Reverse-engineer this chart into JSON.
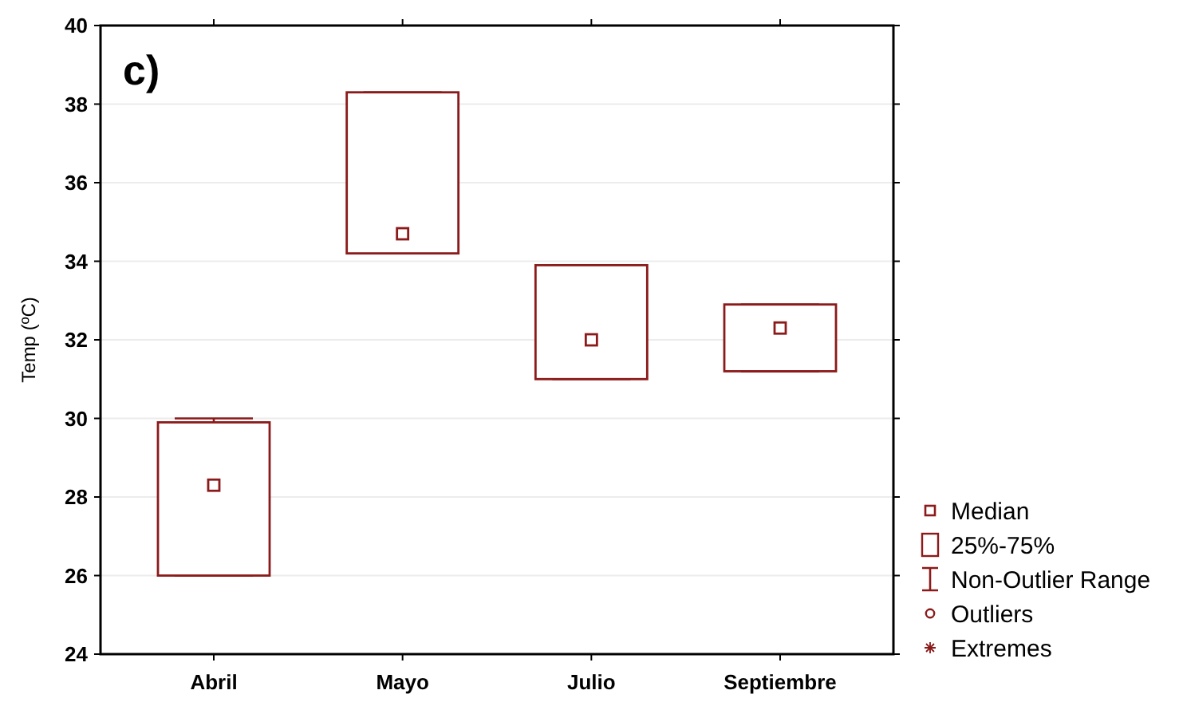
{
  "chart_data": {
    "type": "box",
    "title": "c)",
    "ylabel": "Temp (ºC)",
    "categories": [
      "Abril",
      "Mayo",
      "Julio",
      "Septiembre"
    ],
    "series": [
      {
        "color": "#8b1a1a",
        "boxes": [
          {
            "low": 26,
            "q1": 26,
            "median": 28.3,
            "q3": 29.9,
            "high": 30
          },
          {
            "low": 34.2,
            "q1": 34.2,
            "median": 34.7,
            "q3": 38.3,
            "high": 38.3
          },
          {
            "low": 31,
            "q1": 31,
            "median": 32,
            "q3": 33.9,
            "high": 33.9
          },
          {
            "low": 31.2,
            "q1": 31.2,
            "median": 32.3,
            "q3": 32.9,
            "high": 32.9
          }
        ]
      }
    ],
    "ylim": [
      24,
      40
    ],
    "yticks": [
      24,
      26,
      28,
      30,
      32,
      34,
      36,
      38,
      40
    ],
    "grid": "y",
    "annotations": [
      "Median",
      "25%-75%",
      "Non-Outlier Range",
      "Outliers",
      "Extremes"
    ]
  }
}
